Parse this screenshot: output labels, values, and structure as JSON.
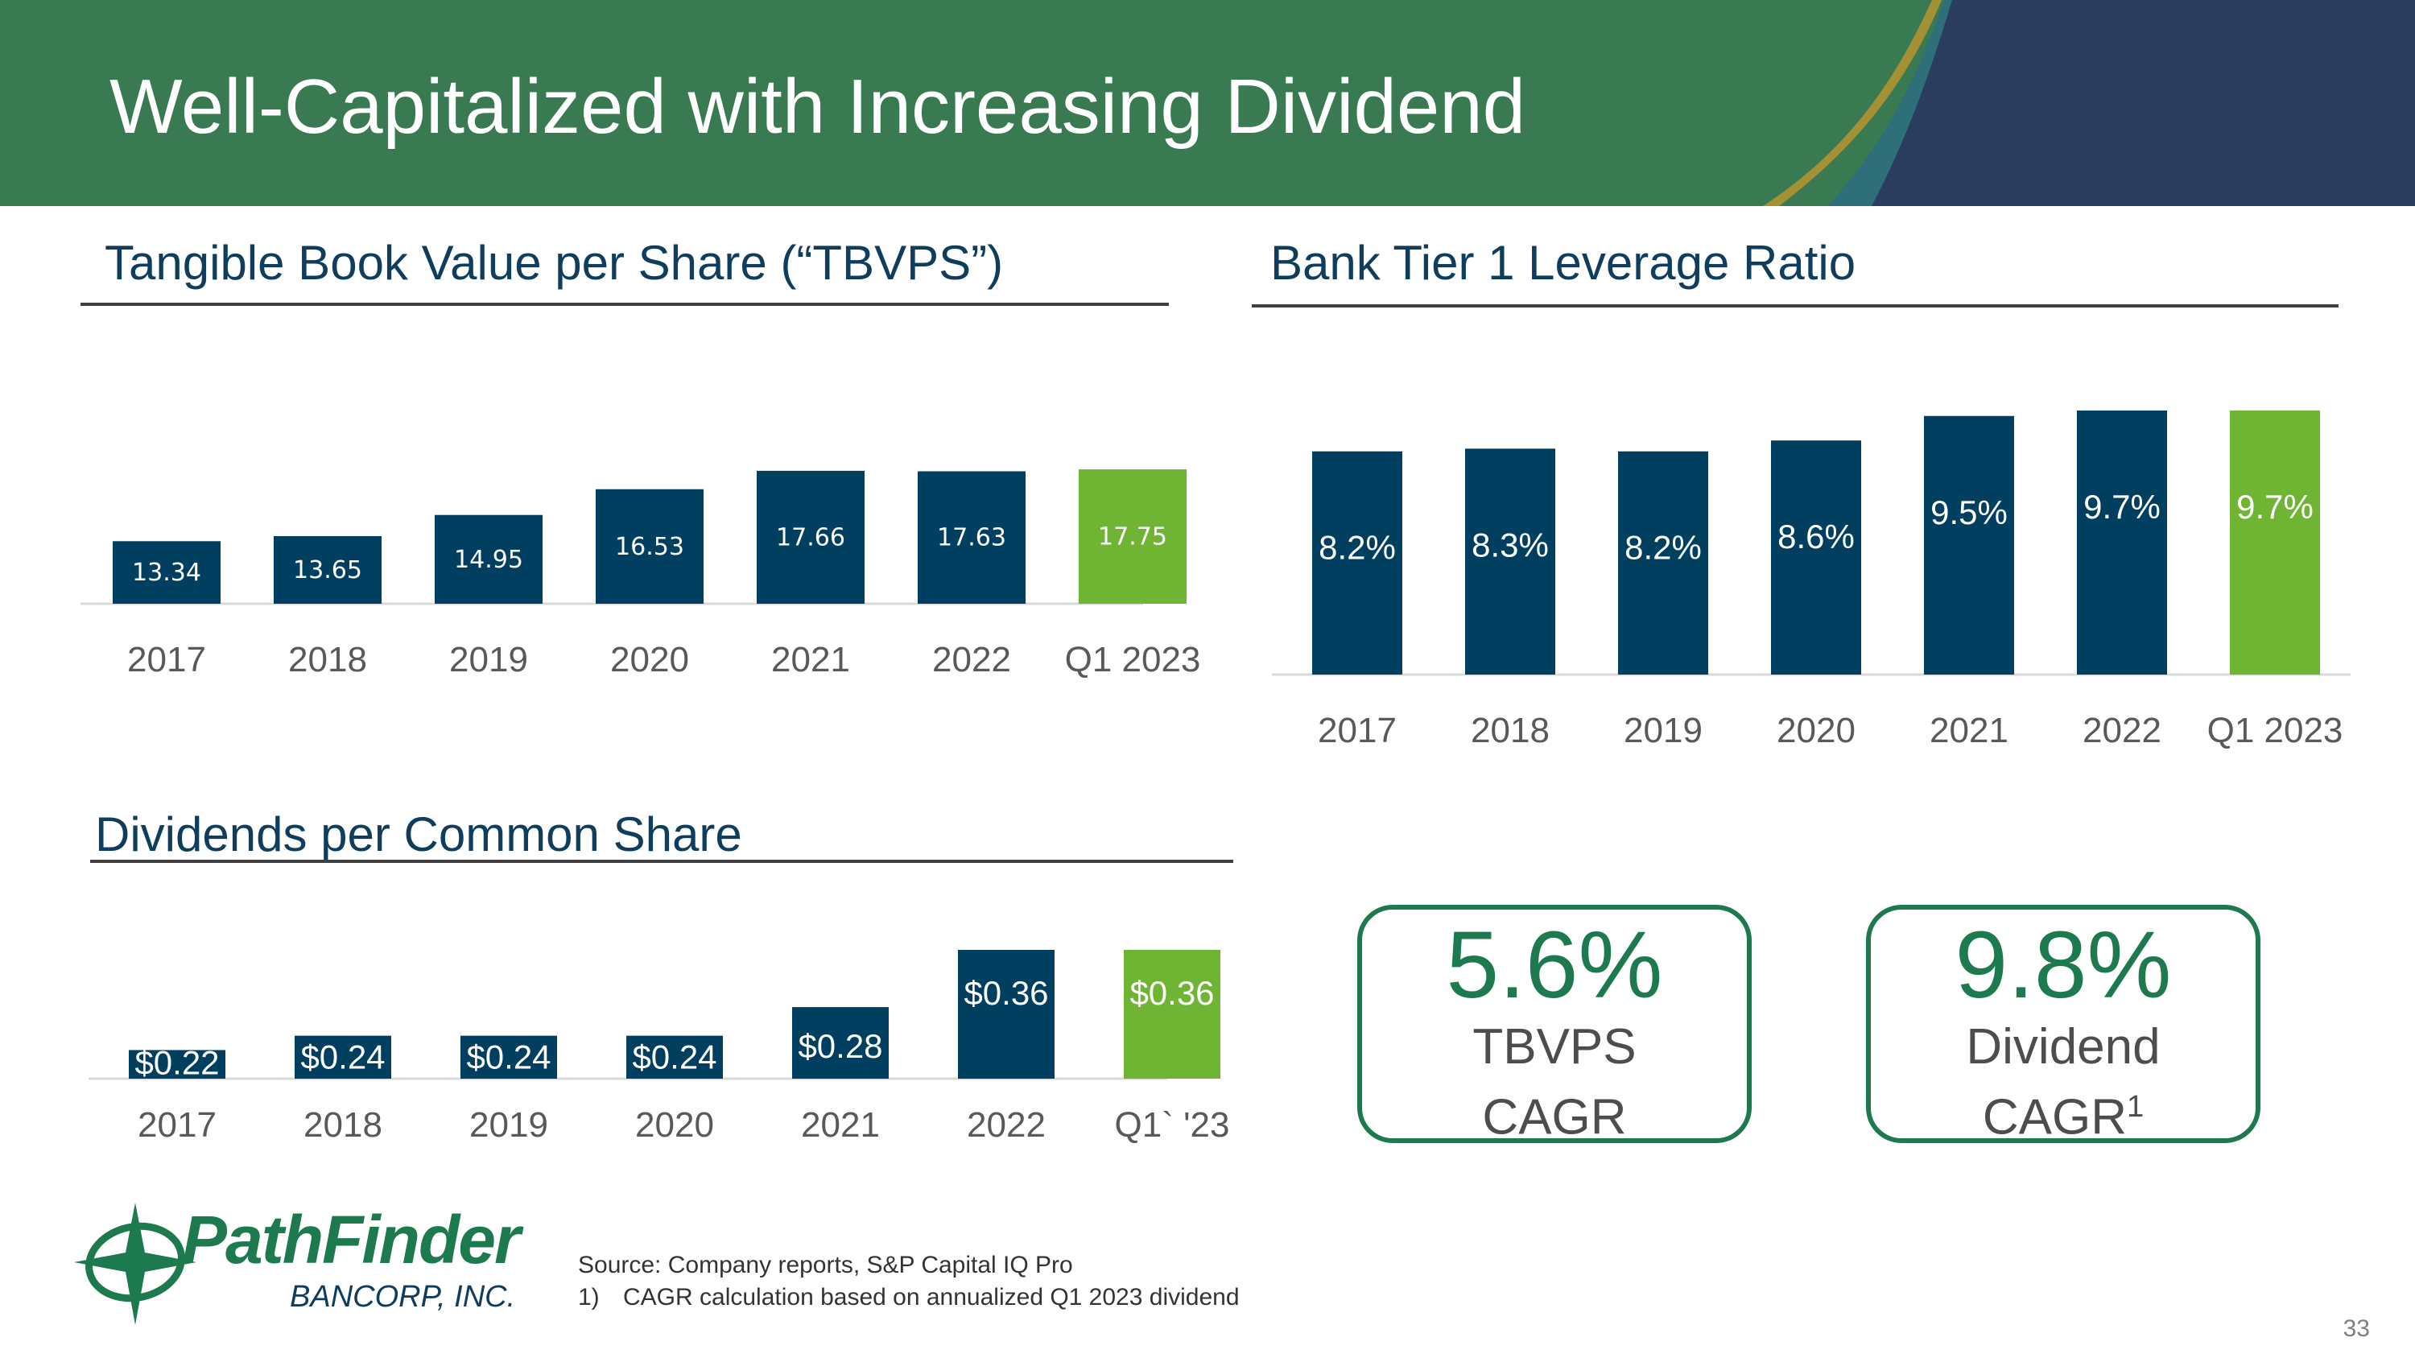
{
  "slide": {
    "title": "Well-Capitalized with Increasing Dividend",
    "page_number": "33",
    "colors": {
      "header_green": "#3a7a52",
      "navy": "#003f5f",
      "highlight_green": "#6fb432",
      "accent_green": "#1d7a4f"
    }
  },
  "sections": {
    "tbvps": "Tangible Book Value per Share (“TBVPS”)",
    "leverage": "Bank Tier 1 Leverage Ratio",
    "dividends": "Dividends per Common Share"
  },
  "chart_data": [
    {
      "id": "tbvps",
      "type": "bar",
      "categories": [
        "2017",
        "2018",
        "2019",
        "2020",
        "2021",
        "2022",
        "Q1 2023"
      ],
      "values": [
        13.34,
        13.65,
        14.95,
        16.53,
        17.66,
        17.63,
        17.75
      ],
      "labels": [
        "13.34",
        "13.65",
        "14.95",
        "16.53",
        "17.66",
        "17.63",
        "17.75"
      ],
      "ylim": [
        9.5,
        18
      ],
      "highlight_index": 6
    },
    {
      "id": "leverage",
      "type": "bar",
      "categories": [
        "2017",
        "2018",
        "2019",
        "2020",
        "2021",
        "2022",
        "Q1 2023"
      ],
      "values": [
        8.2,
        8.3,
        8.2,
        8.6,
        9.5,
        9.7,
        9.7
      ],
      "labels": [
        "8.2%",
        "8.3%",
        "8.2%",
        "8.6%",
        "9.5%",
        "9.7%",
        "9.7%"
      ],
      "ylim": [
        0,
        9.7
      ],
      "highlight_index": 6
    },
    {
      "id": "dividends",
      "type": "bar",
      "categories": [
        "2017",
        "2018",
        "2019",
        "2020",
        "2021",
        "2022",
        "Q1` '23"
      ],
      "values": [
        0.22,
        0.24,
        0.24,
        0.24,
        0.28,
        0.36,
        0.36
      ],
      "labels": [
        "$0.22",
        "$0.24",
        "$0.24",
        "$0.24",
        "$0.28",
        "$0.36",
        "$0.36"
      ],
      "ylim": [
        0.18,
        0.36
      ],
      "highlight_index": 6
    }
  ],
  "cagr": [
    {
      "value": "5.6%",
      "line1": "TBVPS",
      "line2": "CAGR",
      "footnote": ""
    },
    {
      "value": "9.8%",
      "line1": "Dividend",
      "line2": "CAGR",
      "footnote": "1"
    }
  ],
  "logo": {
    "name": "PathFinder",
    "sub": "BANCORP, INC."
  },
  "source": {
    "line1": "Source: Company reports, S&P Capital IQ Pro",
    "footnote_num": "1)",
    "footnote_text": "CAGR calculation based on annualized Q1 2023 dividend"
  }
}
